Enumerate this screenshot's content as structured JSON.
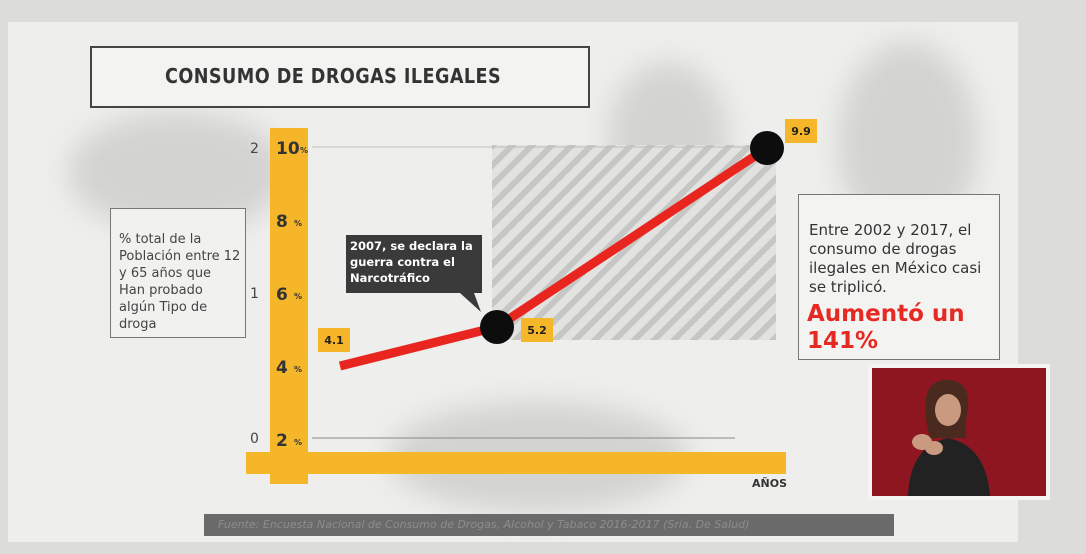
{
  "chart_data": {
    "type": "line",
    "title": "CONSUMO DE DROGAS ILEGALES",
    "x_label": "AÑOS",
    "y_description": "% total de la Población entre 12 y 65 años que Han probado algún Tipo de droga",
    "y_unit": "%",
    "y_ticks_percent": [
      "2",
      "4",
      "6",
      "8",
      "10"
    ],
    "y_ticks_secondary": [
      "0",
      "1",
      "2"
    ],
    "ylim": [
      0,
      10
    ],
    "points": [
      {
        "year": 2002,
        "value": 4.1,
        "label": "4.1"
      },
      {
        "year": 2007,
        "value": 5.2,
        "label": "5.2"
      },
      {
        "year": 2017,
        "value": 9.9,
        "label": "9.9"
      }
    ],
    "annotation": "2007, se declara la guerra contra el Narcotráfico",
    "line_color": "#e8251f",
    "axis_color": "#f6b62a"
  },
  "info_text": "Entre 2002 y 2017, el consumo de drogas ilegales en México casi se triplicó.",
  "info_highlight": "Aumentó un 141%",
  "highlight_color": "#e52a23",
  "source_text": "Fuente: Encuesta Nacional de Consumo de Drogas, Alcohol y Tabaco 2016-2017 (Sría. De Salud)",
  "signer_icon": "sign-language-interpreter-icon"
}
